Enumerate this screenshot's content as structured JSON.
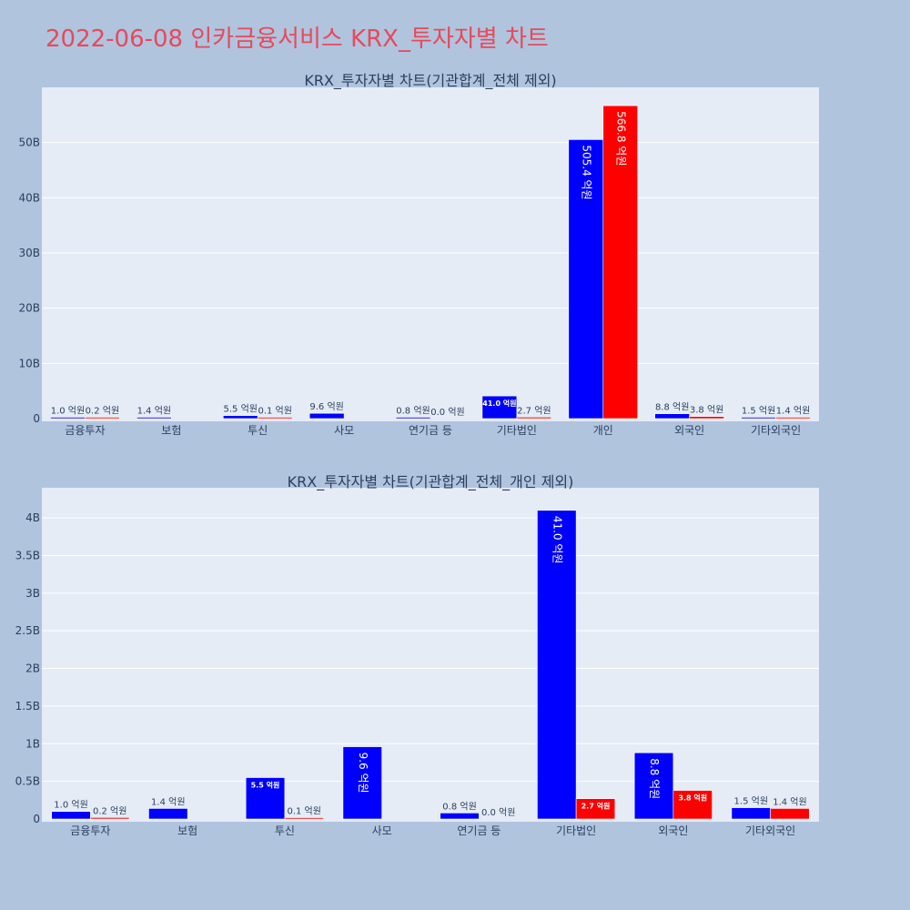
{
  "page": {
    "title": "2022-06-08 인카금융서비스 KRX_투자자별 차트"
  },
  "colors": {
    "background": "#b0c4de",
    "plot_bg": "#e5ecf6",
    "series_a": "#0000ff",
    "series_b": "#ff0000",
    "title": "#e8495a"
  },
  "chart_data": [
    {
      "type": "bar",
      "title": "KRX_투자자별 차트(기관합계_전체 제외)",
      "categories": [
        "금융투자",
        "보험",
        "투신",
        "사모",
        "연기금 등",
        "기타법인",
        "개인",
        "외국인",
        "기타외국인"
      ],
      "series": [
        {
          "values": [
            0.1,
            0.14,
            0.55,
            0.96,
            0.08,
            4.1,
            50.54,
            0.88,
            0.15
          ],
          "labels": [
            "1.0 억원",
            "1.4 억원",
            "5.5 억원",
            "9.6 억원",
            "0.8 억원",
            "41.0 억원",
            "505.4 억원",
            "8.8 억원",
            "1.5 억원"
          ]
        },
        {
          "values": [
            0.02,
            0,
            0.01,
            0,
            0.0,
            0.27,
            56.68,
            0.38,
            0.14
          ],
          "labels": [
            "0.2 억원",
            "",
            "0.1 억원",
            "",
            "0.0 억원",
            "2.7 억원",
            "566.8 억원",
            "3.8 억원",
            "1.4 억원"
          ]
        }
      ],
      "yunit": "B",
      "ylim": [
        0,
        60
      ],
      "yticks": [
        "0",
        "10B",
        "20B",
        "30B",
        "40B",
        "50B"
      ],
      "grid": true
    },
    {
      "type": "bar",
      "title": "KRX_투자자별 차트(기관합계_전체_개인 제외)",
      "categories": [
        "금융투자",
        "보험",
        "투신",
        "사모",
        "연기금 등",
        "기타법인",
        "외국인",
        "기타외국인"
      ],
      "series": [
        {
          "values": [
            0.1,
            0.14,
            0.55,
            0.96,
            0.08,
            4.1,
            0.88,
            0.15
          ],
          "labels": [
            "1.0 억원",
            "1.4 억원",
            "5.5 억원",
            "9.6 억원",
            "0.8 억원",
            "41.0 억원",
            "8.8 억원",
            "1.5 억원"
          ]
        },
        {
          "values": [
            0.02,
            0,
            0.01,
            0,
            0.0,
            0.27,
            0.38,
            0.14
          ],
          "labels": [
            "0.2 억원",
            "",
            "0.1 억원",
            "",
            "0.0 억원",
            "2.7 억원",
            "3.8 억원",
            "1.4 억원"
          ]
        }
      ],
      "yunit": "B",
      "ylim": [
        0,
        4.4
      ],
      "yticks": [
        "0",
        "0.5B",
        "1B",
        "1.5B",
        "2B",
        "2.5B",
        "3B",
        "3.5B",
        "4B"
      ],
      "grid": true
    }
  ]
}
